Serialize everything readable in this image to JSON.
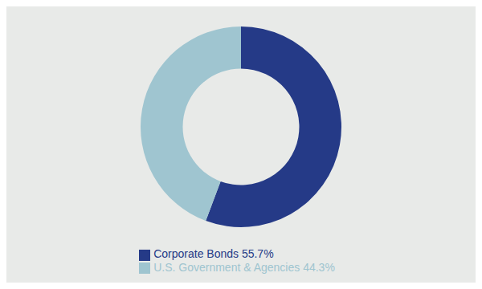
{
  "chart_data": {
    "type": "pie",
    "categories": [
      "Corporate Bonds 55.7%",
      "U.S. Government & Agencies 44.3%"
    ],
    "values": [
      55.7,
      44.3
    ],
    "colors": [
      "#253a87",
      "#9fc5d0"
    ],
    "legend": "bottom"
  }
}
